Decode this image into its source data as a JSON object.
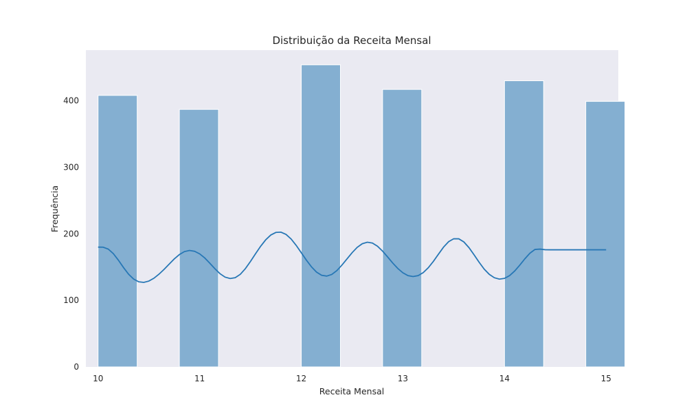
{
  "chart_data": {
    "type": "bar",
    "title": "Distribuição da Receita Mensal",
    "xlabel": "Receita Mensal",
    "ylabel": "Frequência",
    "xlim": [
      9.88,
      15.12
    ],
    "ylim": [
      0,
      476
    ],
    "xticks": [
      "10",
      "11",
      "12",
      "13",
      "14",
      "15"
    ],
    "yticks": [
      "0",
      "100",
      "200",
      "300",
      "400"
    ],
    "grid": false,
    "bins": [
      {
        "x0": 10.0,
        "x1": 10.385,
        "value": 408
      },
      {
        "x0": 10.8,
        "x1": 11.185,
        "value": 387
      },
      {
        "x0": 12.0,
        "x1": 12.385,
        "value": 454
      },
      {
        "x0": 12.8,
        "x1": 13.185,
        "value": 417
      },
      {
        "x0": 14.0,
        "x1": 14.385,
        "value": 430
      },
      {
        "x0": 14.8,
        "x1": 15.185,
        "value": 399
      }
    ],
    "kde": {
      "x": [
        10.0,
        10.05,
        10.1,
        10.15,
        10.2,
        10.25,
        10.3,
        10.35,
        10.4,
        10.45,
        10.5,
        10.55,
        10.6,
        10.65,
        10.7,
        10.75,
        10.8,
        10.85,
        10.9,
        10.95,
        11.0,
        11.05,
        11.1,
        11.15,
        11.2,
        11.25,
        11.3,
        11.35,
        11.4,
        11.45,
        11.5,
        11.55,
        11.6,
        11.65,
        11.7,
        11.75,
        11.8,
        11.85,
        11.9,
        11.95,
        12.0,
        12.05,
        12.1,
        12.15,
        12.2,
        12.25,
        12.3,
        12.35,
        12.4,
        12.45,
        12.5,
        12.55,
        12.6,
        12.65,
        12.7,
        12.75,
        12.8,
        12.85,
        12.9,
        12.95,
        13.0,
        13.05,
        13.1,
        13.15,
        13.2,
        13.25,
        13.3,
        13.35,
        13.4,
        13.45,
        13.5,
        13.55,
        13.6,
        13.65,
        13.7,
        13.75,
        13.8,
        13.85,
        13.9,
        13.95,
        14.0,
        14.05,
        14.1,
        14.15,
        14.2,
        14.25,
        14.3,
        14.35,
        14.4,
        14.45,
        14.5,
        14.55,
        14.6,
        14.65,
        14.7,
        14.75,
        14.8,
        14.85,
        14.9,
        14.95,
        15.0
      ],
      "y": [
        180.0,
        179.9,
        177.1,
        170.3,
        160.4,
        149.4,
        139.4,
        132.0,
        127.9,
        127.0,
        129.0,
        133.3,
        139.4,
        146.6,
        154.5,
        162.3,
        168.8,
        173.3,
        175.0,
        173.8,
        169.9,
        163.7,
        155.8,
        147.5,
        140.1,
        134.9,
        132.8,
        134.1,
        139.2,
        147.7,
        158.5,
        170.1,
        181.3,
        191.0,
        198.2,
        202.1,
        202.5,
        199.1,
        192.2,
        182.6,
        171.6,
        160.5,
        150.4,
        142.5,
        137.7,
        136.5,
        138.9,
        144.7,
        153.0,
        162.3,
        171.6,
        179.6,
        185.1,
        187.4,
        186.1,
        181.4,
        174.0,
        165.2,
        156.1,
        147.9,
        141.4,
        137.2,
        135.8,
        137.2,
        141.7,
        149.0,
        158.6,
        169.4,
        180.0,
        188.2,
        192.6,
        192.5,
        187.8,
        179.3,
        168.6,
        157.3,
        147.0,
        139.1,
        134.0,
        131.9,
        133.0,
        137.2,
        144.1,
        152.9,
        162.4,
        170.8,
        176.5,
        177.0,
        176.1,
        176.0,
        176.0,
        176.0,
        176.0,
        176.0,
        176.0,
        176.0,
        176.0,
        176.0,
        176.0,
        176.0,
        176.0
      ]
    },
    "colors": {
      "background": "#eaeaf2",
      "bar_fill": "#84afd1",
      "bar_edge": "#ffffff",
      "kde_line": "#2777b5"
    }
  }
}
